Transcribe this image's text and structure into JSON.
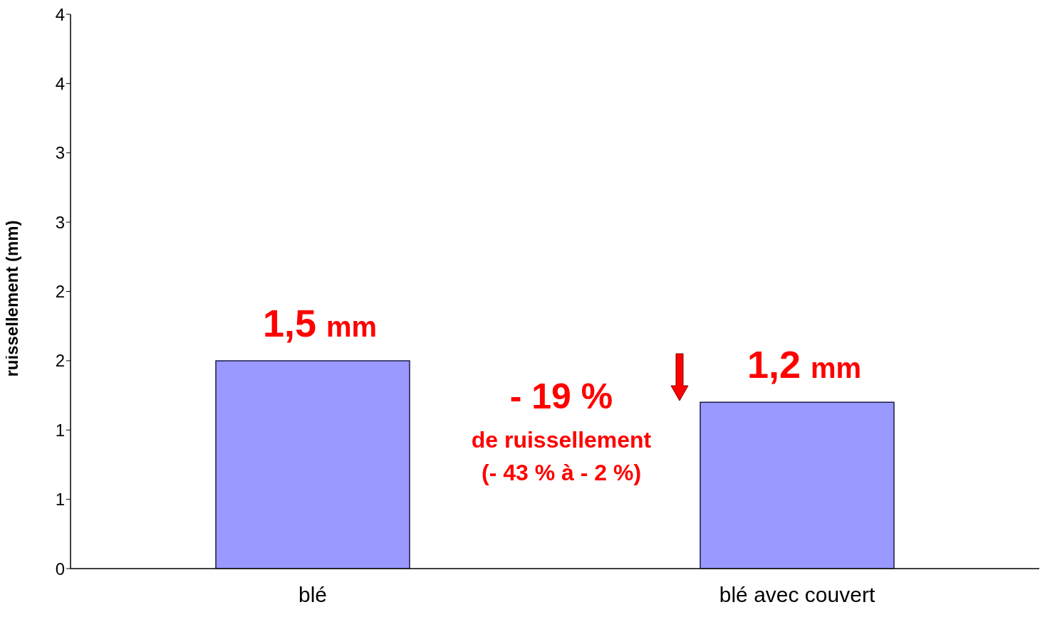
{
  "chart_data": {
    "type": "bar",
    "categories": [
      "blé",
      "blé avec couvert"
    ],
    "values": [
      1.5,
      1.2
    ],
    "color": "#9999ff",
    "value_labels": [
      "1,5 mm",
      "1,2 mm"
    ],
    "ylabel": "ruissellement (mm)",
    "ylim": [
      0,
      4
    ],
    "yticks": [
      0,
      {
        "value": 0.5,
        "label": "1"
      },
      1,
      {
        "value": 1.5,
        "label": "2"
      },
      2,
      {
        "value": 2.5,
        "label": "3"
      },
      3,
      {
        "value": 3.5,
        "label": "4"
      },
      4
    ],
    "annotations": [
      "- 19 %",
      "de ruissellement",
      "(- 43 % à - 2 %)"
    ]
  }
}
